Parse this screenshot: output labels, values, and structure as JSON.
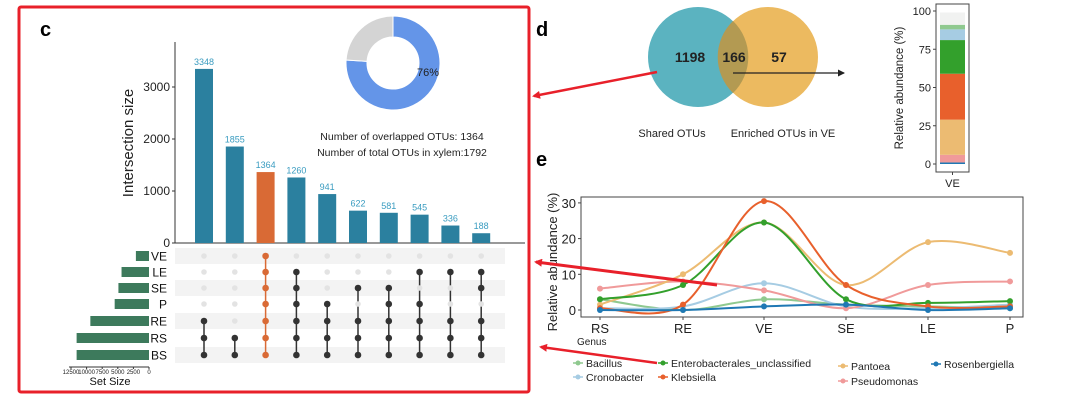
{
  "panels": {
    "c": "c",
    "d": "d",
    "e": "e"
  },
  "chart_data": [
    {
      "id": "upset",
      "type": "bar",
      "title": "",
      "ylabel": "Intersection size",
      "yticks": [
        0,
        1000,
        2000,
        3000
      ],
      "ylim": [
        0,
        3900
      ],
      "values": [
        3348,
        1855,
        1364,
        1260,
        941,
        622,
        581,
        545,
        336,
        188
      ],
      "highlight_index": 2,
      "colors": {
        "bar": "#2b809f",
        "highlight": "#d96a35",
        "label": "#3a9cc0"
      },
      "sets": [
        "VE",
        "LE",
        "SE",
        "P",
        "RE",
        "RS",
        "BS"
      ],
      "set_sizes": [
        2100,
        4400,
        4900,
        5500,
        9400,
        11600,
        11600
      ],
      "set_size_label": "Set Size",
      "set_size_ticks": [
        "12500",
        "10000",
        "7500",
        "5000",
        "2500",
        "0"
      ],
      "set_size_tick_values": [
        12500,
        10000,
        7500,
        5000,
        2500,
        0
      ],
      "membership": [
        [
          "RE",
          "RS",
          "BS"
        ],
        [
          "RS",
          "BS"
        ],
        [
          "VE",
          "LE",
          "SE",
          "P",
          "RE",
          "RS",
          "BS"
        ],
        [
          "LE",
          "SE",
          "P",
          "RE",
          "RS",
          "BS"
        ],
        [
          "P",
          "RE",
          "RS",
          "BS"
        ],
        [
          "SE",
          "RE",
          "RS",
          "BS"
        ],
        [
          "SE",
          "P",
          "RE",
          "RS",
          "BS"
        ],
        [
          "LE",
          "P",
          "RE",
          "RS",
          "BS"
        ],
        [
          "LE",
          "RE",
          "RS",
          "BS"
        ],
        [
          "LE",
          "SE",
          "RE",
          "RS",
          "BS"
        ]
      ]
    },
    {
      "id": "donut",
      "type": "pie",
      "values": [
        76,
        24
      ],
      "label": "76%",
      "colors": [
        "#6495e8",
        "#d4d4d4"
      ],
      "annotations": [
        "Number of overlapped OTUs: 1364",
        "Number of  total OTUs  in xylem:1792"
      ]
    },
    {
      "id": "venn",
      "type": "venn",
      "left_only": "1198",
      "overlap": "166",
      "right_only": "57",
      "left_label": "Shared OTUs",
      "right_label": "Enriched OTUs in VE",
      "colors": [
        "#5bb3c0",
        "#e59f22"
      ]
    },
    {
      "id": "stacked",
      "type": "bar",
      "categories": [
        "VE"
      ],
      "ylabel": "Relative abundance (%)",
      "yticks": [
        0,
        25,
        50,
        75,
        100
      ],
      "ylim": [
        0,
        100
      ],
      "segments": [
        {
          "name": "Rosenbergiella",
          "value": 1,
          "color": "#1f78b4"
        },
        {
          "name": "Pseudomonas",
          "value": 5,
          "color": "#f09a9a"
        },
        {
          "name": "Pantoea",
          "value": 23,
          "color": "#ecbb72"
        },
        {
          "name": "Klebsiella",
          "value": 30,
          "color": "#e8602c"
        },
        {
          "name": "Enterobacterales_unclassified",
          "value": 22,
          "color": "#33a02c"
        },
        {
          "name": "Cronobacter",
          "value": 7,
          "color": "#a6cce3"
        },
        {
          "name": "Bacillus",
          "value": 3,
          "color": "#8fc98f"
        },
        {
          "name": "Other",
          "value": 8,
          "color": "#f1f2f1"
        }
      ]
    },
    {
      "id": "lines",
      "type": "line",
      "categories": [
        "RS",
        "RE",
        "VE",
        "SE",
        "LE",
        "P"
      ],
      "ylabel": "Relative abundance (%)",
      "yticks": [
        0,
        10,
        20,
        30
      ],
      "ylim": [
        -2.5,
        32
      ],
      "legend_title": "Genus",
      "series": [
        {
          "name": "Bacillus",
          "color": "#8fc98f",
          "values": [
            3,
            0,
            3,
            1.5,
            1,
            0.5
          ]
        },
        {
          "name": "Cronobacter",
          "color": "#a6cce3",
          "values": [
            0.5,
            1,
            7.5,
            1,
            0.5,
            1.5
          ]
        },
        {
          "name": "Pseudomonas",
          "color": "#f09a9a",
          "values": [
            6,
            8,
            5.5,
            0.5,
            7,
            8
          ]
        },
        {
          "name": "Pantoea",
          "color": "#ecbb72",
          "values": [
            1.5,
            10,
            24.5,
            7,
            19,
            16
          ]
        },
        {
          "name": "Enterobacterales_unclassified",
          "color": "#33a02c",
          "values": [
            3,
            7,
            24.5,
            3,
            2,
            2.5
          ]
        },
        {
          "name": "Klebsiella",
          "color": "#e8602c",
          "values": [
            0.5,
            1.5,
            30.5,
            7,
            1,
            1
          ]
        },
        {
          "name": "Rosenbergiella",
          "color": "#1f78b4",
          "values": [
            0,
            0,
            1,
            1.5,
            0,
            0.5
          ]
        }
      ]
    }
  ]
}
